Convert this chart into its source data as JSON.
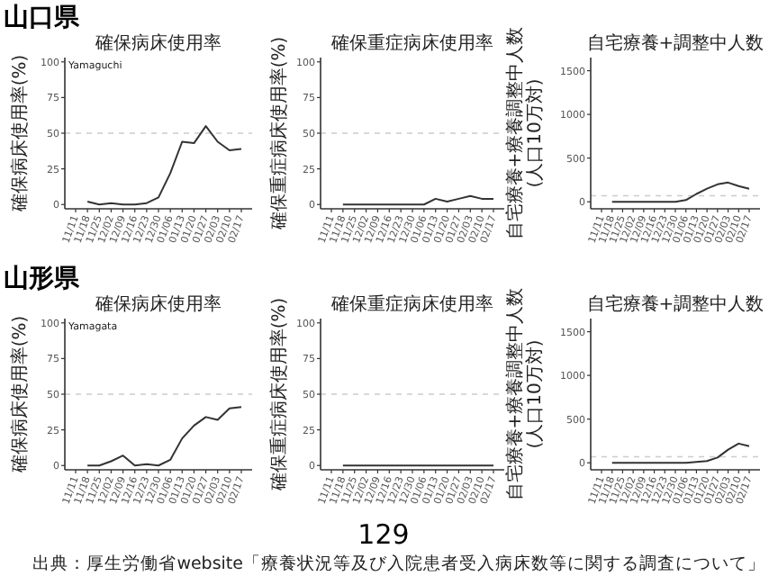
{
  "chart_data": [
    {
      "type": "line",
      "title": "確保病床使用率",
      "ylabel": "確保病床使用率(%)",
      "annotations": [
        "山口県",
        "Yamaguchi"
      ],
      "categories": [
        "11/11",
        "11/18",
        "11/25",
        "12/02",
        "12/09",
        "12/16",
        "12/23",
        "12/30",
        "01/06",
        "01/13",
        "01/20",
        "01/27",
        "02/03",
        "02/10",
        "02/17"
      ],
      "color": "#333333",
      "values": [
        null,
        2,
        0,
        1,
        0,
        0,
        1,
        5,
        22,
        44,
        43,
        55,
        44,
        38,
        39
      ],
      "ylim": [
        -3,
        103
      ],
      "yticks": [
        0,
        25,
        50,
        75,
        100
      ],
      "ref_lines": [
        {
          "axis": "y",
          "value": 50,
          "color": "#cccccc",
          "line_style": "dashed"
        }
      ]
    },
    {
      "type": "line",
      "title": "確保重症病床使用率",
      "ylabel": "確保重症病床使用率(%)",
      "categories": [
        "11/11",
        "11/18",
        "11/25",
        "12/02",
        "12/09",
        "12/16",
        "12/23",
        "12/30",
        "01/06",
        "01/13",
        "01/20",
        "01/27",
        "02/03",
        "02/10",
        "02/17"
      ],
      "color": "#333333",
      "values": [
        null,
        0,
        0,
        0,
        0,
        0,
        0,
        0,
        0,
        4,
        2,
        4,
        6,
        4,
        4
      ],
      "ylim": [
        -3,
        103
      ],
      "yticks": [
        0,
        25,
        50,
        75,
        100
      ],
      "ref_lines": [
        {
          "axis": "y",
          "value": 50,
          "color": "#cccccc",
          "line_style": "dashed"
        }
      ]
    },
    {
      "type": "line",
      "title": "自宅療養+調整中人数",
      "ylabel": "自宅療養+療養調整中人数(人口10万対)",
      "categories": [
        "11/11",
        "11/18",
        "11/25",
        "12/02",
        "12/09",
        "12/16",
        "12/23",
        "12/30",
        "01/06",
        "01/13",
        "01/20",
        "01/27",
        "02/03",
        "02/10",
        "02/17"
      ],
      "color": "#333333",
      "values": [
        null,
        0,
        0,
        0,
        0,
        0,
        0,
        0,
        20,
        90,
        150,
        200,
        220,
        180,
        150
      ],
      "ylim": [
        -80,
        1650
      ],
      "yticks": [
        0,
        500,
        1000,
        1500
      ],
      "ref_lines": [
        {
          "axis": "y",
          "value": 70,
          "color": "#cccccc",
          "line_style": "dashed"
        }
      ]
    },
    {
      "type": "line",
      "title": "確保病床使用率",
      "ylabel": "確保病床使用率(%)",
      "annotations": [
        "山形県",
        "Yamagata"
      ],
      "categories": [
        "11/11",
        "11/18",
        "11/25",
        "12/02",
        "12/09",
        "12/16",
        "12/23",
        "12/30",
        "01/06",
        "01/13",
        "01/20",
        "01/27",
        "02/03",
        "02/10",
        "02/17"
      ],
      "color": "#333333",
      "values": [
        null,
        0,
        0,
        3,
        7,
        0,
        1,
        0,
        4,
        19,
        28,
        34,
        32,
        40,
        41
      ],
      "ylim": [
        -3,
        103
      ],
      "yticks": [
        0,
        25,
        50,
        75,
        100
      ],
      "ref_lines": [
        {
          "axis": "y",
          "value": 50,
          "color": "#cccccc",
          "line_style": "dashed"
        }
      ]
    },
    {
      "type": "line",
      "title": "確保重症病床使用率",
      "ylabel": "確保重症病床使用率(%)",
      "categories": [
        "11/11",
        "11/18",
        "11/25",
        "12/02",
        "12/09",
        "12/16",
        "12/23",
        "12/30",
        "01/06",
        "01/13",
        "01/20",
        "01/27",
        "02/03",
        "02/10",
        "02/17"
      ],
      "color": "#333333",
      "values": [
        null,
        0,
        0,
        0,
        0,
        0,
        0,
        0,
        0,
        0,
        0,
        0,
        0,
        0,
        0
      ],
      "ylim": [
        -3,
        103
      ],
      "yticks": [
        0,
        25,
        50,
        75,
        100
      ],
      "ref_lines": [
        {
          "axis": "y",
          "value": 50,
          "color": "#cccccc",
          "line_style": "dashed"
        }
      ]
    },
    {
      "type": "line",
      "title": "自宅療養+調整中人数",
      "ylabel": "自宅療養+療養調整中人数(人口10万対)",
      "annotations": [
        "129",
        "出典：厚生労働省website「療養状況等及び入院患者受入病床数等に関する調査について」"
      ],
      "categories": [
        "11/11",
        "11/18",
        "11/25",
        "12/02",
        "12/09",
        "12/16",
        "12/23",
        "12/30",
        "01/06",
        "01/13",
        "01/20",
        "01/27",
        "02/03",
        "02/10",
        "02/17"
      ],
      "color": "#333333",
      "values": [
        null,
        0,
        0,
        0,
        0,
        0,
        0,
        0,
        0,
        10,
        20,
        60,
        150,
        220,
        190
      ],
      "ylim": [
        -80,
        1650
      ],
      "yticks": [
        0,
        500,
        1000,
        1500
      ],
      "ref_lines": [
        {
          "axis": "y",
          "value": 70,
          "color": "#cccccc",
          "line_style": "dashed"
        }
      ]
    }
  ]
}
